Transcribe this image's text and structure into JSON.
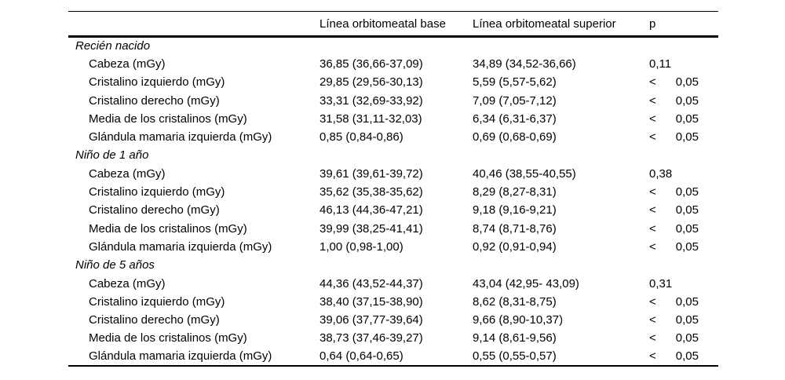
{
  "table": {
    "columns": [
      "",
      "Línea orbitomeatal base",
      "Línea orbitomeatal superior",
      "p"
    ],
    "groups": [
      {
        "label": "Recién nacido",
        "rows": [
          {
            "label": "Cabeza (mGy)",
            "base": "36,85 (36,66-37,09)",
            "superior": "34,89 (34,52-36,66)",
            "p": "0,11"
          },
          {
            "label": "Cristalino izquierdo (mGy)",
            "base": "29,85 (29,56-30,13)",
            "superior": "5,59 (5,57-5,62)",
            "p": "<      0,05"
          },
          {
            "label": "Cristalino derecho (mGy)",
            "base": "33,31 (32,69-33,92)",
            "superior": "7,09 (7,05-7,12)",
            "p": "<      0,05"
          },
          {
            "label": "Media de los cristalinos (mGy)",
            "base": "31,58 (31,11-32,03)",
            "superior": "6,34 (6,31-6,37)",
            "p": "<      0,05"
          },
          {
            "label": "Glándula mamaria izquierda (mGy)",
            "base": "0,85 (0,84-0,86)",
            "superior": "0,69 (0,68-0,69)",
            "p": "<      0,05"
          }
        ]
      },
      {
        "label": "Niño de 1 año",
        "rows": [
          {
            "label": "Cabeza (mGy)",
            "base": "39,61 (39,61-39,72)",
            "superior": "40,46 (38,55-40,55)",
            "p": "0,38"
          },
          {
            "label": "Cristalino izquierdo (mGy)",
            "base": "35,62 (35,38-35,62)",
            "superior": "8,29 (8,27-8,31)",
            "p": "<      0,05"
          },
          {
            "label": "Cristalino derecho (mGy)",
            "base": "46,13 (44,36-47,21)",
            "superior": "9,18 (9,16-9,21)",
            "p": "<      0,05"
          },
          {
            "label": "Media de los cristalinos (mGy)",
            "base": "39,99 (38,25-41,41)",
            "superior": "8,74 (8,71-8,76)",
            "p": "<      0,05"
          },
          {
            "label": "Glándula mamaria izquierda (mGy)",
            "base": "1,00 (0,98-1,00)",
            "superior": "0,92 (0,91-0,94)",
            "p": "<      0,05"
          }
        ]
      },
      {
        "label": "Niño de 5 años",
        "rows": [
          {
            "label": "Cabeza (mGy)",
            "base": "44,36 (43,52-44,37)",
            "superior": "43,04 (42,95- 43,09)",
            "p": "0,31"
          },
          {
            "label": "Cristalino izquierdo (mGy)",
            "base": "38,40 (37,15-38,90)",
            "superior": "8,62 (8,31-8,75)",
            "p": "<      0,05"
          },
          {
            "label": "Cristalino derecho (mGy)",
            "base": "39,06 (37,77-39,64)",
            "superior": "9,66 (8,90-10,37)",
            "p": "<      0,05"
          },
          {
            "label": "Media de los cristalinos (mGy)",
            "base": "38,73 (37,46-39,27)",
            "superior": "9,14 (8,61-9,56)",
            "p": "<      0,05"
          },
          {
            "label": "Glándula mamaria izquierda (mGy)",
            "base": "0,64 (0,64-0,65)",
            "superior": "0,55 (0,55-0,57)",
            "p": "<      0,05"
          }
        ]
      }
    ]
  }
}
